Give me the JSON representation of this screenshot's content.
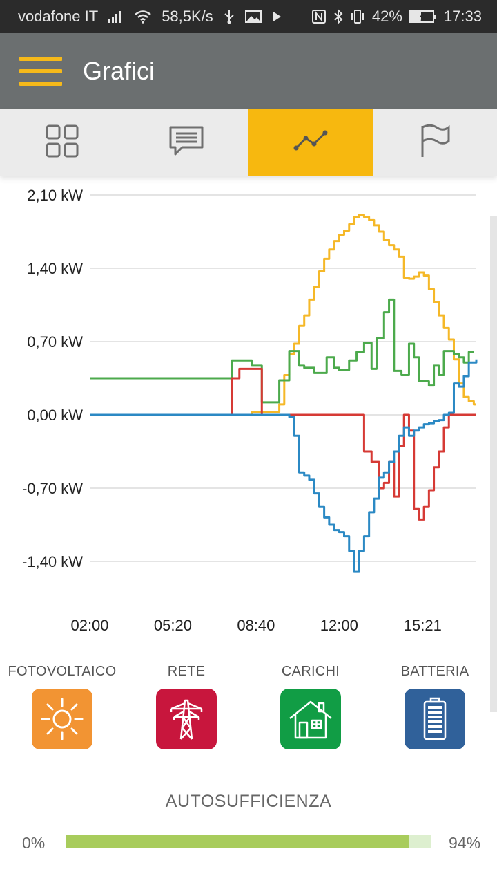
{
  "status_bar": {
    "carrier": "vodafone IT",
    "speed": "58,5K/s",
    "battery": "42%",
    "time": "17:33"
  },
  "app_bar": {
    "title": "Grafici"
  },
  "tabs": [
    {
      "icon": "grid-icon",
      "active": false
    },
    {
      "icon": "chat-icon",
      "active": false
    },
    {
      "icon": "line-chart-icon",
      "active": true
    },
    {
      "icon": "flag-icon",
      "active": false
    }
  ],
  "chart_data": {
    "type": "line",
    "y_tick_labels": [
      "2,10 kW",
      "1,40 kW",
      "0,70 kW",
      "0,00 kW",
      "-0,70 kW",
      "-1,40 kW"
    ],
    "y_ticks": [
      2.1,
      1.4,
      0.7,
      0.0,
      -0.7,
      -1.4
    ],
    "x_tick_labels": [
      "02:00",
      "05:20",
      "08:40",
      "12:00",
      "15:21"
    ],
    "x_ticks": [
      2.0,
      5.333,
      8.667,
      12.0,
      15.35
    ],
    "ylim": [
      -1.5,
      2.1
    ],
    "xlim": [
      2.0,
      17.5
    ],
    "grid": true,
    "series": [
      {
        "color": "#f5b828",
        "x": [
          2.0,
          8.3,
          8.5,
          8.9,
          9.6,
          9.8,
          10.0,
          10.2,
          10.4,
          10.6,
          10.8,
          11.0,
          11.2,
          11.4,
          11.6,
          11.8,
          12.0,
          12.2,
          12.4,
          12.6,
          12.8,
          13.0,
          13.2,
          13.4,
          13.6,
          13.8,
          14.0,
          14.2,
          14.4,
          14.6,
          14.8,
          15.0,
          15.2,
          15.4,
          15.6,
          15.8,
          16.0,
          16.2,
          16.4,
          16.6,
          16.8,
          17.0,
          17.2,
          17.4,
          17.5
        ],
        "y": [
          0.0,
          0.0,
          0.03,
          0.03,
          0.1,
          0.38,
          0.58,
          0.68,
          0.85,
          0.95,
          1.1,
          1.22,
          1.37,
          1.49,
          1.58,
          1.66,
          1.72,
          1.76,
          1.82,
          1.89,
          1.91,
          1.89,
          1.86,
          1.81,
          1.75,
          1.67,
          1.62,
          1.58,
          1.51,
          1.31,
          1.3,
          1.32,
          1.36,
          1.33,
          1.2,
          1.08,
          0.95,
          0.83,
          0.72,
          0.53,
          0.3,
          0.17,
          0.13,
          0.1,
          0.1
        ]
      },
      {
        "color": "#4caa4c",
        "x": [
          2.0,
          7.6,
          7.7,
          8.3,
          8.5,
          8.9,
          9.6,
          10.0,
          10.4,
          10.6,
          11.0,
          11.5,
          11.8,
          12.0,
          12.4,
          12.7,
          13.0,
          13.3,
          13.5,
          13.8,
          14.0,
          14.2,
          14.5,
          14.8,
          15.0,
          15.2,
          15.6,
          15.8,
          16.0,
          16.2,
          16.6,
          16.8,
          17.0,
          17.2,
          17.4
        ],
        "y": [
          0.35,
          0.35,
          0.52,
          0.52,
          0.47,
          0.12,
          0.33,
          0.61,
          0.47,
          0.45,
          0.4,
          0.55,
          0.45,
          0.43,
          0.52,
          0.6,
          0.69,
          0.44,
          0.73,
          0.98,
          1.1,
          0.42,
          0.38,
          0.68,
          0.55,
          0.32,
          0.28,
          0.47,
          0.38,
          0.61,
          0.58,
          0.55,
          0.5,
          0.6,
          0.6
        ]
      },
      {
        "color": "#d63a35",
        "x": [
          2.0,
          7.6,
          7.7,
          8.0,
          8.3,
          8.9,
          9.6,
          10.4,
          11.0,
          12.0,
          12.8,
          13.0,
          13.3,
          13.6,
          13.8,
          14.0,
          14.2,
          14.4,
          14.6,
          14.8,
          15.0,
          15.2,
          15.4,
          15.6,
          15.8,
          16.0,
          16.2,
          16.4,
          16.8,
          17.0,
          17.5
        ],
        "y": [
          0.0,
          0.0,
          0.35,
          0.44,
          0.44,
          0.0,
          0.0,
          0.0,
          0.0,
          0.0,
          0.0,
          -0.35,
          -0.45,
          -0.7,
          -0.65,
          -0.45,
          -0.78,
          -0.3,
          0.0,
          -0.15,
          -0.9,
          -1.0,
          -0.88,
          -0.72,
          -0.5,
          -0.35,
          -0.12,
          0.0,
          0.0,
          0.0,
          0.0
        ]
      },
      {
        "color": "#2b89c4",
        "x": [
          2.0,
          9.6,
          10.0,
          10.2,
          10.4,
          10.6,
          10.8,
          11.0,
          11.2,
          11.4,
          11.6,
          11.8,
          12.0,
          12.2,
          12.4,
          12.6,
          12.8,
          13.0,
          13.2,
          13.4,
          13.6,
          13.8,
          14.0,
          14.2,
          14.4,
          14.6,
          14.8,
          15.0,
          15.2,
          15.4,
          15.6,
          15.8,
          16.0,
          16.2,
          16.4,
          16.6,
          16.8,
          17.0,
          17.2,
          17.5
        ],
        "y": [
          0.0,
          0.0,
          -0.02,
          -0.2,
          -0.55,
          -0.58,
          -0.62,
          -0.75,
          -0.88,
          -0.98,
          -1.05,
          -1.1,
          -1.12,
          -1.16,
          -1.3,
          -1.5,
          -1.3,
          -1.16,
          -0.93,
          -0.8,
          -0.6,
          -0.55,
          -0.45,
          -0.35,
          -0.2,
          -0.12,
          -0.2,
          -0.15,
          -0.12,
          -0.09,
          -0.08,
          -0.06,
          -0.05,
          0.0,
          0.02,
          0.3,
          0.27,
          0.37,
          0.5,
          0.53
        ]
      }
    ]
  },
  "legend": [
    {
      "label": "FOTOVOLTAICO",
      "icon": "sun-icon",
      "color": "#f29433"
    },
    {
      "label": "RETE",
      "icon": "power-pylon-icon",
      "color": "#c8163d"
    },
    {
      "label": "CARICHI",
      "icon": "house-icon",
      "color": "#119d45"
    },
    {
      "label": "BATTERIA",
      "icon": "battery-icon",
      "color": "#30619a"
    }
  ],
  "autosufficienza": {
    "title": "AUTOSUFFICIENZA",
    "min_label": "0%",
    "max_label": "94%",
    "value": 0.94
  }
}
